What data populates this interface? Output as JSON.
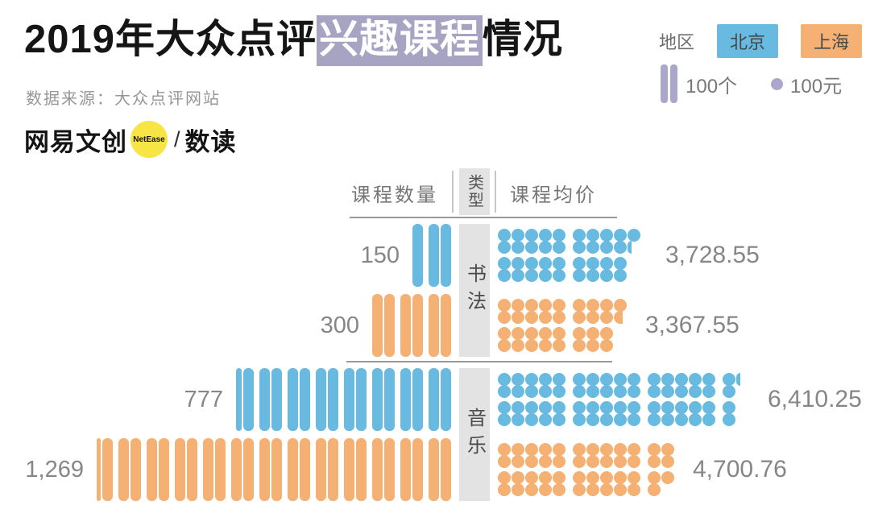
{
  "title": {
    "prefix": "2019年大众点评",
    "highlight": "兴趣课程",
    "suffix": "情况"
  },
  "source": "数据来源：大众点评网站",
  "logo": {
    "brand": "网易文创",
    "badge": "NetEase",
    "divider": "/",
    "product": "数读"
  },
  "legend": {
    "region_label": "地区",
    "regions": [
      {
        "name": "北京",
        "color": "#68BAE0"
      },
      {
        "name": "上海",
        "color": "#F4B173"
      }
    ],
    "bar_unit_label": "100个",
    "dot_unit_label": "100元"
  },
  "table": {
    "headers": {
      "count": "课程数量",
      "type": "类型",
      "price": "课程均价"
    }
  },
  "chart_data": {
    "type": "pictogram-bar",
    "bar_unit_value": 100,
    "dot_unit_value": 100,
    "columns": [
      "课程数量",
      "类型",
      "课程均价"
    ],
    "sections": [
      {
        "category": "书法",
        "rows": [
          {
            "region": "北京",
            "count": 150,
            "count_label": "150",
            "price": 3728.55,
            "price_label": "3,728.55"
          },
          {
            "region": "上海",
            "count": 300,
            "count_label": "300",
            "price": 3367.55,
            "price_label": "3,367.55"
          }
        ]
      },
      {
        "category": "音乐",
        "rows": [
          {
            "region": "北京",
            "count": 777,
            "count_label": "777",
            "price": 6410.25,
            "price_label": "6,410.25"
          },
          {
            "region": "上海",
            "count": 1269,
            "count_label": "1,269",
            "price": 4700.76,
            "price_label": "4,700.76"
          }
        ]
      }
    ]
  },
  "colors": {
    "beijing_blue": "#68BAE0",
    "shanghai_orange": "#F4B173",
    "unit_purple": "#ABA7CB",
    "highlight_bg": "#A7A3C2",
    "type_column_bg": "#E3E3E3",
    "divider_gray": "#9A9A9A",
    "number_gray": "#868686",
    "header_gray": "#767676",
    "logo_yellow": "#F6E545"
  }
}
